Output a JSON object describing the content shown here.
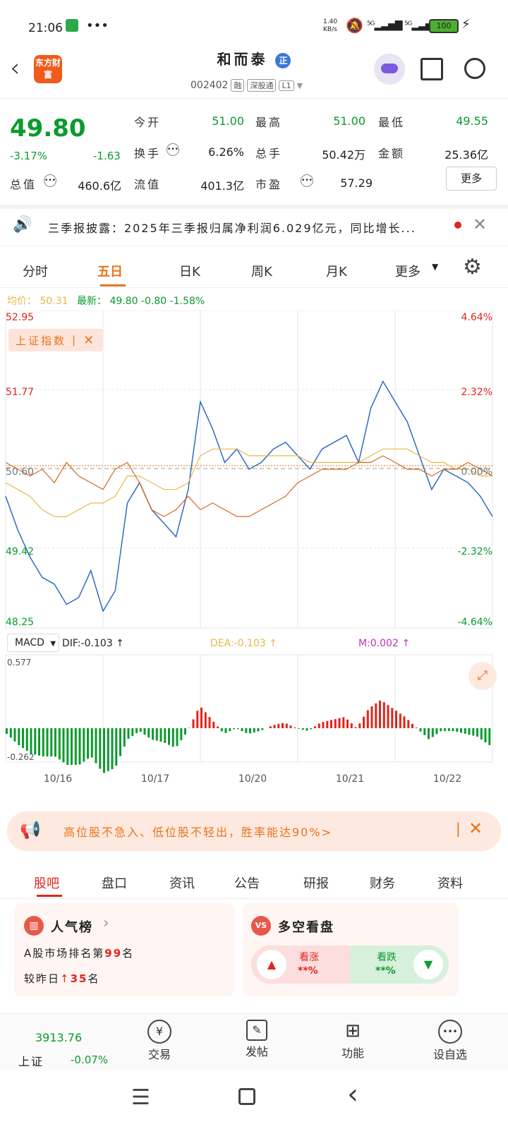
{
  "status_bar": {
    "time": "21:06",
    "net_speed": "1.40\nKB/s",
    "battery": "100"
  },
  "header": {
    "brand": "东方财富",
    "stock_name": "和而泰",
    "stock_code": "002402",
    "tags": [
      "融",
      "深股通",
      "L1"
    ]
  },
  "quote": {
    "price": "49.80",
    "change_pct": "-3.17%",
    "change": "-1.63",
    "fields": [
      {
        "label": "今开",
        "value": "51.00",
        "color": "#0a9b2e"
      },
      {
        "label": "最高",
        "value": "51.00",
        "color": "#0a9b2e"
      },
      {
        "label": "最低",
        "value": "49.55",
        "color": "#0a9b2e"
      },
      {
        "label": "换手",
        "value": "6.26%",
        "color": "#222"
      },
      {
        "label": "总手",
        "value": "50.42万",
        "color": "#222"
      },
      {
        "label": "金额",
        "value": "25.36亿",
        "color": "#222"
      },
      {
        "label": "总值",
        "value": "460.6亿",
        "color": "#222"
      },
      {
        "label": "流值",
        "value": "401.3亿",
        "color": "#222"
      },
      {
        "label": "市盈",
        "value": "57.29",
        "color": "#222"
      }
    ],
    "more": "更多"
  },
  "ticker": {
    "text": "三季报披露：2025年三季报归属净利润6.029亿元，同比增长..."
  },
  "timeframes": [
    "分时",
    "五日",
    "日K",
    "周K",
    "月K",
    "更多"
  ],
  "active_timeframe": 1,
  "chart_info": {
    "avg_label": "均价：",
    "avg_value": "50.31",
    "latest_label": "最新：",
    "latest_value": "49.80 -0.80 -1.58%",
    "index_overlay": "上证指数",
    "macd_label": "MACD",
    "dif": "DIF:-0.103 ↑",
    "dea": "DEA:-0.103 ↑",
    "m": "M:0.002 ↑",
    "macd_top": "0.577",
    "macd_bottom": "-0.262"
  },
  "chart_data": {
    "type": "line",
    "y_ticks_left": [
      "52.95",
      "51.77",
      "50.60",
      "49.42",
      "48.25"
    ],
    "y_ticks_right": [
      "4.64%",
      "2.32%",
      "0.00%",
      "-2.32%",
      "-4.64%"
    ],
    "x_ticks": [
      "10/16",
      "10/17",
      "10/20",
      "10/21",
      "10/22"
    ],
    "ylim": [
      48.25,
      52.95
    ],
    "series": [
      {
        "values": [
          50.2,
          49.7,
          49.3,
          49.0,
          48.9,
          48.6,
          48.7,
          49.1,
          48.5,
          48.8,
          50.1,
          50.4,
          50.0,
          49.8,
          49.6,
          50.3,
          51.6,
          51.2,
          50.7,
          50.9,
          50.6,
          50.7,
          50.9,
          51.0,
          50.8,
          50.6,
          50.9,
          51.0,
          51.1,
          50.7,
          51.5,
          51.9,
          51.6,
          51.3,
          50.8,
          50.3,
          50.6,
          50.5,
          50.4,
          50.2,
          49.9
        ]
      },
      {
        "values": [
          50.4,
          50.3,
          50.2,
          50.0,
          49.9,
          49.9,
          50.0,
          50.1,
          50.1,
          50.2,
          50.5,
          50.5,
          50.4,
          50.3,
          50.3,
          50.4,
          50.8,
          50.9,
          50.9,
          50.9,
          50.8,
          50.8,
          50.8,
          50.8,
          50.8,
          50.7,
          50.7,
          50.7,
          50.7,
          50.7,
          50.8,
          50.9,
          50.9,
          50.9,
          50.8,
          50.7,
          50.7,
          50.6,
          50.6,
          50.5,
          50.5
        ]
      },
      {
        "values": [
          50.7,
          50.6,
          50.5,
          50.6,
          50.4,
          50.7,
          50.5,
          50.4,
          50.3,
          50.6,
          50.7,
          50.4,
          50.0,
          49.9,
          50.0,
          50.2,
          50.0,
          50.1,
          50.0,
          49.9,
          49.9,
          50.0,
          50.1,
          50.2,
          50.4,
          50.5,
          50.6,
          50.6,
          50.6,
          50.7,
          50.7,
          50.8,
          50.7,
          50.6,
          50.6,
          50.5,
          50.6,
          50.6,
          50.7,
          50.6,
          50.5
        ]
      }
    ]
  },
  "promo": {
    "text": "高位股不急入、低位股不轻出，胜率能达90%>"
  },
  "section_tabs": [
    "股吧",
    "盘口",
    "资讯",
    "公告",
    "研报",
    "财务",
    "资料"
  ],
  "active_section": 0,
  "cards": {
    "rank": {
      "title": "人气榜",
      "line1": "A股市场排名第",
      "rank": "99",
      "unit": "名",
      "line2": "较昨日",
      "delta": "35",
      "unit2": "名"
    },
    "vote": {
      "title": "多空看盘",
      "up": "看涨",
      "down": "看跌",
      "up_val": "**%",
      "down_val": "**%"
    }
  },
  "bottom_nav": {
    "index_value": "3913.76",
    "index_name": "上证",
    "index_change": "-0.07%",
    "items": [
      "交易",
      "发帖",
      "功能",
      "设自选"
    ]
  },
  "colors": {
    "accent": "#e8731a",
    "up": "#e1251b",
    "down": "#0a9b2e",
    "price_line": "#2d6bc4",
    "avg_line": "#e8b84a",
    "index_line": "#d2691e"
  }
}
